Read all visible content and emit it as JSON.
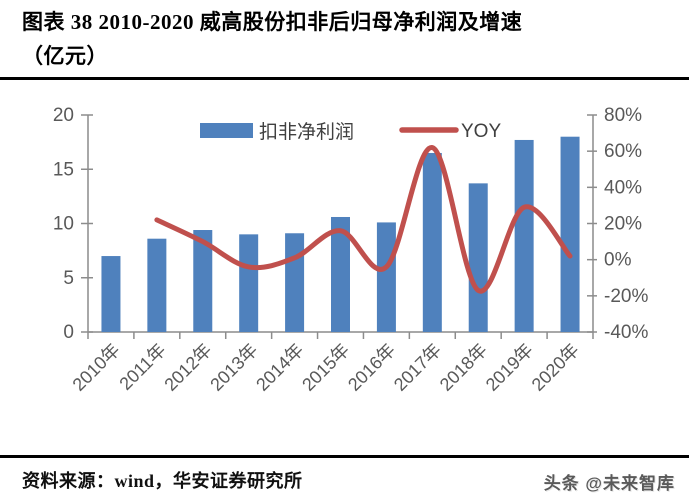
{
  "header": {
    "title_line1": "图表 38 2010-2020 威高股份扣非后归母净利润及增速",
    "title_line2": "（亿元）"
  },
  "footer": {
    "source": "资料来源：wind，华安证券研究所",
    "watermark": "头条 @未来智库"
  },
  "colors": {
    "bar": "#4F81BD",
    "line": "#C0504D",
    "axis_text": "#595959",
    "axis_line": "#8C8C8C",
    "legend_text": "#404040",
    "rule": "#000000"
  },
  "chart_data": {
    "type": "bar",
    "combo": "bar+line",
    "title": "2010-2020 威高股份扣非后归母净利润及增速（亿元）",
    "categories": [
      "2010年",
      "2011年",
      "2012年",
      "2013年",
      "2014年",
      "2015年",
      "2016年",
      "2017年",
      "2018年",
      "2019年",
      "2020年"
    ],
    "series": [
      {
        "name": "扣非净利润",
        "type": "bar",
        "axis": "left",
        "color": "#4F81BD",
        "values": [
          7.0,
          8.6,
          9.4,
          9.0,
          9.1,
          10.6,
          10.1,
          16.5,
          13.7,
          17.7,
          18.0
        ]
      },
      {
        "name": "YOY",
        "type": "line",
        "axis": "right",
        "color": "#C0504D",
        "values_pct": [
          null,
          22,
          10,
          -4,
          1,
          16,
          -4,
          62,
          -17,
          29,
          2
        ]
      }
    ],
    "left_axis": {
      "min": 0,
      "max": 20,
      "step": 5,
      "tick_labels": [
        "0",
        "5",
        "10",
        "15",
        "20"
      ]
    },
    "right_axis": {
      "min": -40,
      "max": 80,
      "step": 20,
      "tick_labels": [
        "80%",
        "60%",
        "40%",
        "20%",
        "0%",
        "-20%",
        "-40%"
      ]
    },
    "legend": [
      "扣非净利润",
      "YOY"
    ],
    "legend_position": "top-center-inside",
    "grid": false,
    "xlabel": "",
    "ylabel_left": "亿元",
    "ylabel_right": "%"
  }
}
